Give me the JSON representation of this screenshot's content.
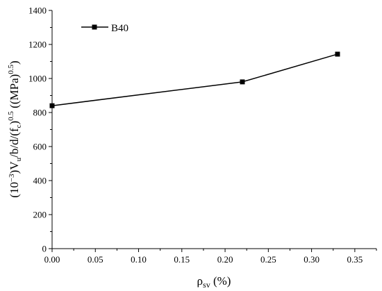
{
  "chart_data": {
    "type": "line",
    "x": [
      0.0,
      0.22,
      0.33
    ],
    "series": [
      {
        "name": "B40",
        "values": [
          840,
          980,
          1143
        ]
      }
    ],
    "xlabel": "ρsv (%)",
    "xlabel_main": "ρ",
    "xlabel_sub": "sv",
    "xlabel_tail": " (%)",
    "ylabel": "(10⁻³)Vu/b/d/(fc)0.5 ((MPa)0.5)",
    "ylabel_parts": {
      "p1": "(10",
      "p2": "−3",
      "p3": ")V",
      "p4": "u",
      "p5": "/b/d/(f",
      "p6": "c",
      "p7": ")",
      "p8": "0.5",
      "p9": "  ((MPa)",
      "p10": "0.5",
      "p11": ")"
    },
    "xlim": [
      0,
      0.375
    ],
    "ylim": [
      0,
      1400
    ],
    "xticks": [
      "0.00",
      "0.05",
      "0.10",
      "0.15",
      "0.20",
      "0.25",
      "0.30",
      "0.35"
    ],
    "yticks": [
      "0",
      "200",
      "400",
      "600",
      "800",
      "1000",
      "1200",
      "1400"
    ],
    "grid": false,
    "legend_position": "top-left",
    "line_color": "#000000",
    "marker": "square"
  }
}
